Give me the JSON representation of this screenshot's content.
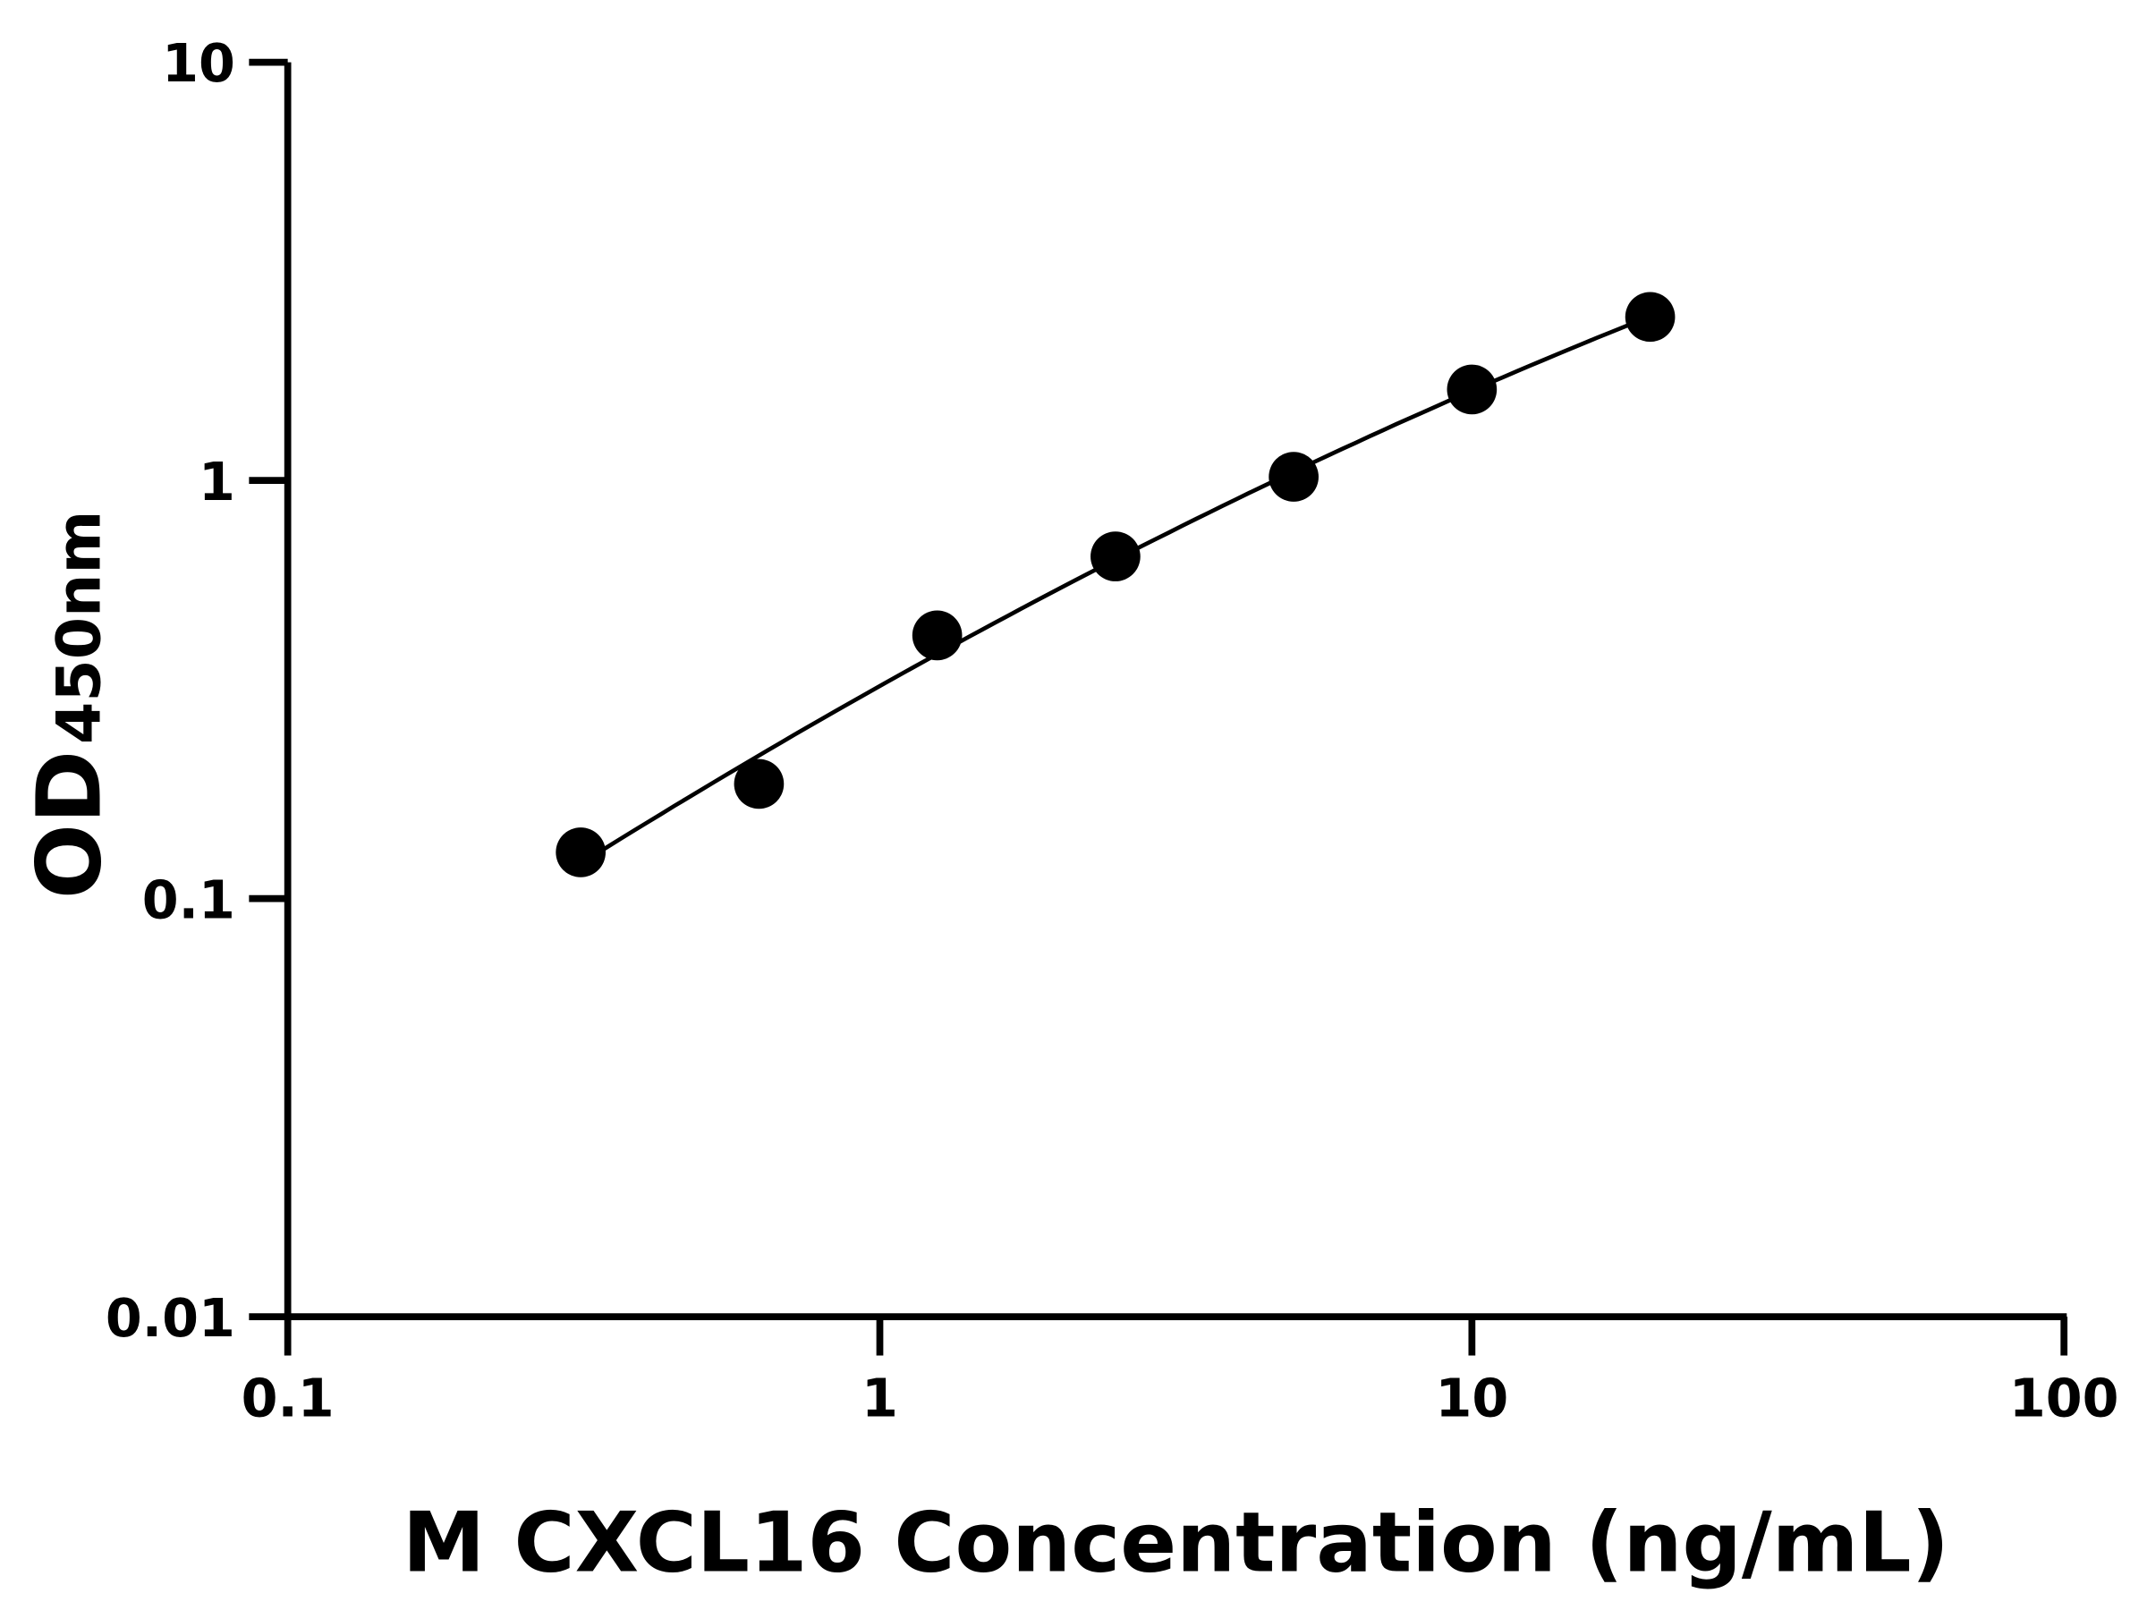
{
  "chart_data": {
    "type": "scatter",
    "title": "",
    "xlabel": "M CXCL16 Concentration (ng/mL)",
    "ylabel_main": "OD",
    "ylabel_sub": "450nm",
    "x_scale": "log",
    "y_scale": "log",
    "xlim": [
      0.1,
      100
    ],
    "ylim": [
      0.01,
      10
    ],
    "x_ticks": [
      0.1,
      1,
      10,
      100
    ],
    "x_tick_labels": [
      "0.1",
      "1",
      "10",
      "100"
    ],
    "y_ticks": [
      0.01,
      0.1,
      1,
      10
    ],
    "y_tick_labels": [
      "0.01",
      "0.1",
      "1",
      "10"
    ],
    "grid": false,
    "fit_curve": true,
    "color": "#000000",
    "points": [
      {
        "x": 0.3125,
        "y": 0.129
      },
      {
        "x": 0.625,
        "y": 0.188
      },
      {
        "x": 1.25,
        "y": 0.426
      },
      {
        "x": 2.5,
        "y": 0.658
      },
      {
        "x": 5,
        "y": 1.02
      },
      {
        "x": 10,
        "y": 1.65
      },
      {
        "x": 20,
        "y": 2.46
      }
    ]
  }
}
